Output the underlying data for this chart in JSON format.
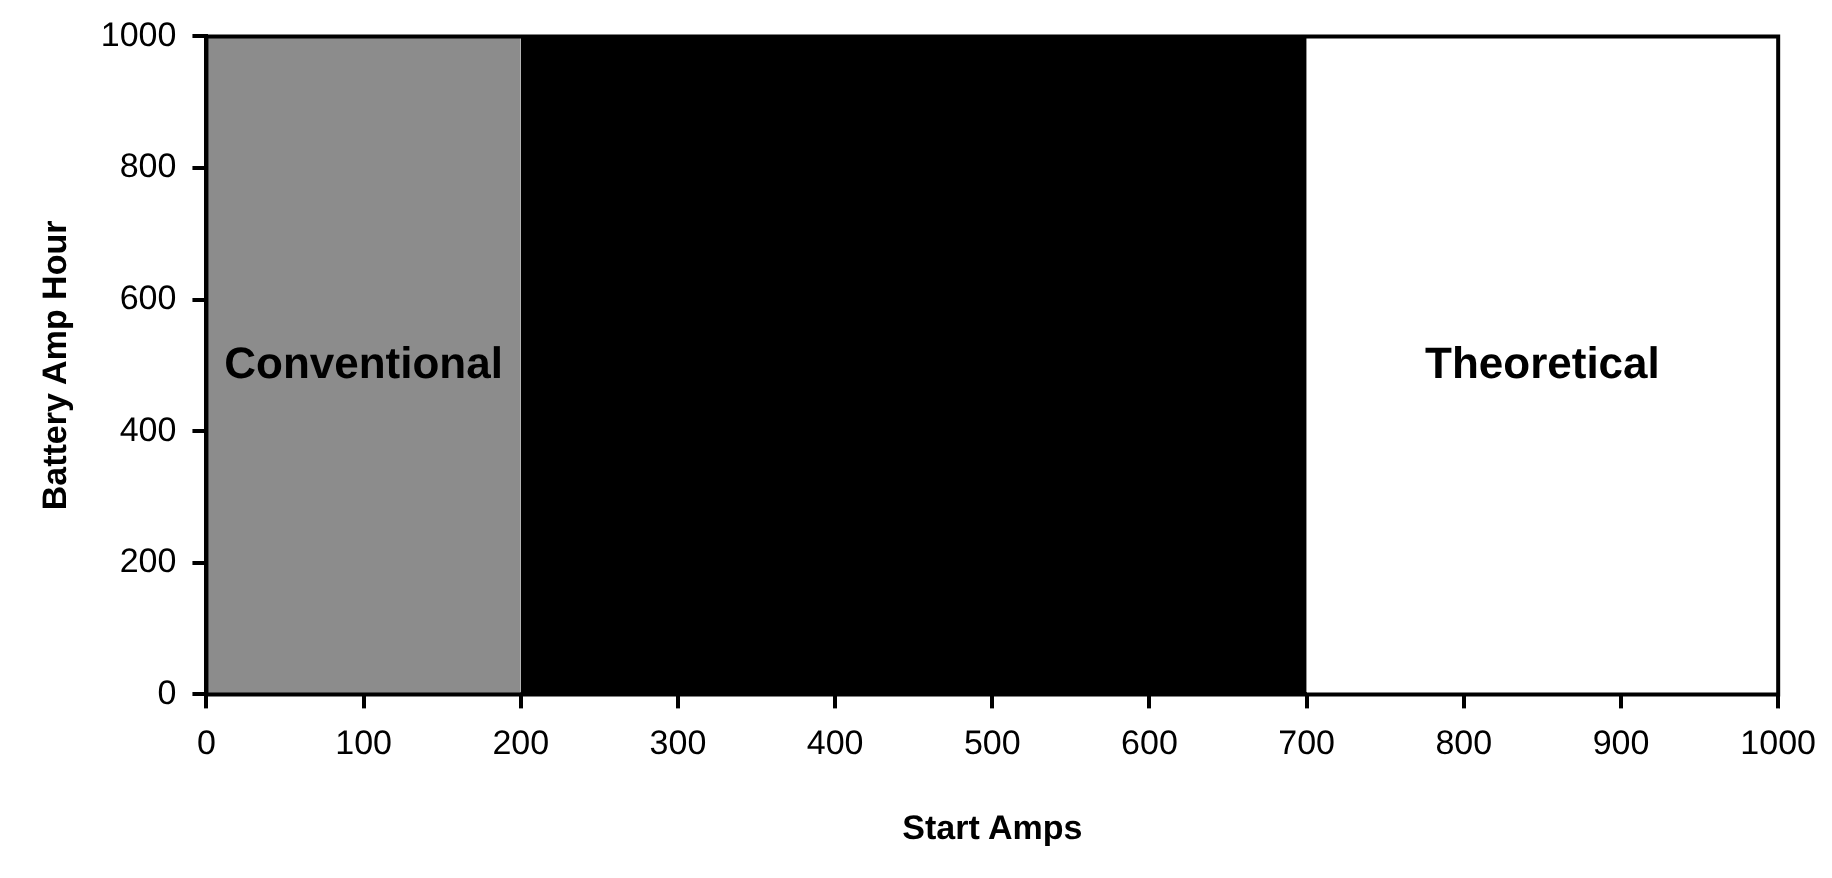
{
  "chart_data": {
    "type": "area",
    "xlabel": "Start Amps",
    "ylabel": "Battery Amp Hour",
    "xlim": [
      0,
      1000
    ],
    "xticks": [
      0,
      100,
      200,
      300,
      400,
      500,
      600,
      700,
      800,
      900,
      1000
    ],
    "ylim": [
      0,
      1000
    ],
    "yticks": [
      0,
      200,
      400,
      600,
      800,
      1000
    ],
    "marker": "none",
    "series": [
      {
        "name": "Conventional",
        "color": "#8c8c8c",
        "x": [
          0,
          200
        ],
        "values": [
          1000,
          1000
        ]
      },
      {
        "color": "#000000",
        "x": [
          200,
          700
        ],
        "values": [
          1000,
          1000
        ]
      },
      {
        "name": "Theoretical",
        "color": "#ffffff",
        "x": [
          700,
          1000
        ],
        "values": [
          1000,
          1000
        ]
      }
    ]
  }
}
